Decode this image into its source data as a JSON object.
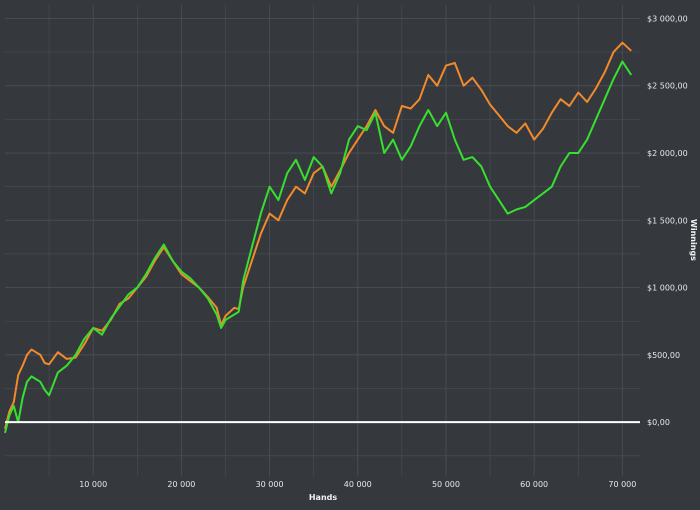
{
  "chart_data": {
    "type": "line",
    "title": "",
    "xlabel": "Hands",
    "ylabel": "Winnings",
    "x_range": [
      0,
      72000
    ],
    "ylim": [
      -400,
      3100
    ],
    "x_ticks": [
      {
        "value": 10000,
        "label": "10 000"
      },
      {
        "value": 20000,
        "label": "20 000"
      },
      {
        "value": 30000,
        "label": "30 000"
      },
      {
        "value": 40000,
        "label": "40 000"
      },
      {
        "value": 50000,
        "label": "50 000"
      },
      {
        "value": 60000,
        "label": "60 000"
      },
      {
        "value": 70000,
        "label": "70 000"
      }
    ],
    "y_ticks": [
      {
        "value": 0,
        "label": "$0,00"
      },
      {
        "value": 500,
        "label": "$500,00"
      },
      {
        "value": 1000,
        "label": "$1 000,00"
      },
      {
        "value": 1500,
        "label": "$1 500,00"
      },
      {
        "value": 2000,
        "label": "$2 000,00"
      },
      {
        "value": 2500,
        "label": "$2 500,00"
      },
      {
        "value": 3000,
        "label": "$3 000,00"
      }
    ],
    "grid": true,
    "zero_line": true,
    "colors": {
      "background": "#35383d",
      "grid": "#4b4f55",
      "zero_line": "#ffffff",
      "orange_series": "#f28a2b",
      "green_series": "#37e02f"
    },
    "series": [
      {
        "color": "#f28a2b",
        "x": [
          0,
          500,
          1000,
          1500,
          2000,
          2500,
          3000,
          3500,
          4000,
          4500,
          5000,
          6000,
          7000,
          8000,
          9000,
          10000,
          11000,
          12000,
          13000,
          14000,
          15000,
          16000,
          17000,
          18000,
          19000,
          20000,
          21000,
          22000,
          23000,
          24000,
          24500,
          25000,
          26000,
          26500,
          27000,
          28000,
          29000,
          30000,
          31000,
          32000,
          33000,
          34000,
          35000,
          36000,
          37000,
          38000,
          39000,
          40000,
          41000,
          42000,
          43000,
          44000,
          45000,
          46000,
          47000,
          48000,
          49000,
          50000,
          51000,
          52000,
          53000,
          54000,
          55000,
          56000,
          57000,
          58000,
          59000,
          60000,
          61000,
          62000,
          63000,
          64000,
          65000,
          66000,
          67000,
          68000,
          69000,
          70000,
          71000
        ],
        "y": [
          -50,
          80,
          150,
          350,
          420,
          500,
          540,
          520,
          500,
          440,
          430,
          520,
          470,
          480,
          580,
          700,
          680,
          760,
          880,
          920,
          1000,
          1080,
          1200,
          1300,
          1200,
          1100,
          1050,
          1000,
          930,
          850,
          720,
          790,
          850,
          840,
          1000,
          1200,
          1400,
          1550,
          1500,
          1650,
          1750,
          1700,
          1850,
          1900,
          1750,
          1870,
          2000,
          2100,
          2200,
          2320,
          2200,
          2150,
          2350,
          2330,
          2400,
          2580,
          2500,
          2650,
          2670,
          2500,
          2560,
          2470,
          2360,
          2280,
          2200,
          2150,
          2220,
          2100,
          2180,
          2300,
          2400,
          2350,
          2450,
          2380,
          2480,
          2600,
          2750,
          2820,
          2760
        ]
      },
      {
        "color": "#37e02f",
        "x": [
          0,
          500,
          1000,
          1500,
          2000,
          2500,
          3000,
          3500,
          4000,
          4500,
          5000,
          6000,
          7000,
          8000,
          9000,
          10000,
          11000,
          12000,
          13000,
          14000,
          15000,
          16000,
          17000,
          18000,
          19000,
          20000,
          21000,
          22000,
          23000,
          24000,
          24500,
          25000,
          26000,
          26500,
          27000,
          28000,
          29000,
          30000,
          31000,
          32000,
          33000,
          34000,
          35000,
          36000,
          37000,
          38000,
          39000,
          40000,
          41000,
          42000,
          43000,
          44000,
          45000,
          46000,
          47000,
          48000,
          49000,
          50000,
          51000,
          52000,
          53000,
          54000,
          55000,
          56000,
          57000,
          58000,
          59000,
          60000,
          61000,
          62000,
          63000,
          64000,
          65000,
          66000,
          67000,
          68000,
          69000,
          70000,
          71000
        ],
        "y": [
          -80,
          50,
          120,
          0,
          180,
          300,
          340,
          320,
          300,
          240,
          200,
          370,
          420,
          500,
          620,
          700,
          650,
          770,
          860,
          950,
          1000,
          1100,
          1220,
          1320,
          1200,
          1120,
          1070,
          1000,
          920,
          800,
          700,
          760,
          800,
          820,
          1050,
          1300,
          1550,
          1750,
          1650,
          1850,
          1950,
          1800,
          1970,
          1900,
          1700,
          1850,
          2100,
          2200,
          2170,
          2300,
          2000,
          2100,
          1950,
          2050,
          2200,
          2320,
          2200,
          2300,
          2100,
          1950,
          1970,
          1900,
          1750,
          1650,
          1550,
          1580,
          1600,
          1650,
          1700,
          1750,
          1900,
          2000,
          2000,
          2100,
          2250,
          2400,
          2550,
          2680,
          2580
        ]
      }
    ]
  }
}
